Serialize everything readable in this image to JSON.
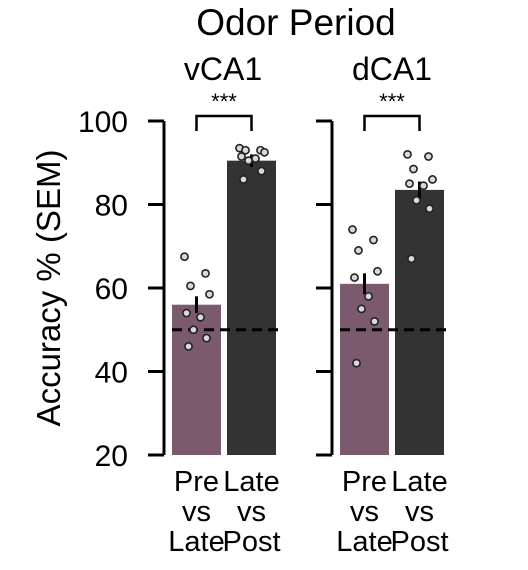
{
  "chart_data": {
    "type": "bar",
    "title": "Odor Period",
    "ylabel": "Accuracy % (SEM)",
    "ylim": [
      20,
      100
    ],
    "yticks": [
      20,
      40,
      60,
      80,
      100
    ],
    "chance_level": 50,
    "grid": false,
    "categories": [
      "Pre vs Late",
      "Late vs Post"
    ],
    "category_labels": [
      [
        "Pre",
        "vs",
        "Late"
      ],
      [
        "Late",
        "vs",
        "Post"
      ]
    ],
    "bar_colors": [
      "#7b5a6e",
      "#333333"
    ],
    "significance": "***",
    "panels": [
      {
        "name": "vCA1",
        "title_color": "#e8736b",
        "values": [
          56,
          90.5
        ],
        "sem": [
          2,
          1.5
        ],
        "points": [
          [
            67.5,
            63.5,
            60.5,
            58.5,
            54,
            53,
            50,
            48,
            46
          ],
          [
            93.5,
            93,
            93,
            92.5,
            91.5,
            91,
            90.5,
            88,
            86
          ]
        ]
      },
      {
        "name": "dCA1",
        "title_color": "#5a7fa8",
        "values": [
          61,
          83.5
        ],
        "sem": [
          2.5,
          2
        ],
        "points": [
          [
            74,
            71.5,
            69,
            64,
            62.5,
            58,
            55,
            52,
            42
          ],
          [
            92,
            91.5,
            88.5,
            86,
            85,
            84.5,
            81,
            79,
            67
          ]
        ]
      }
    ]
  }
}
